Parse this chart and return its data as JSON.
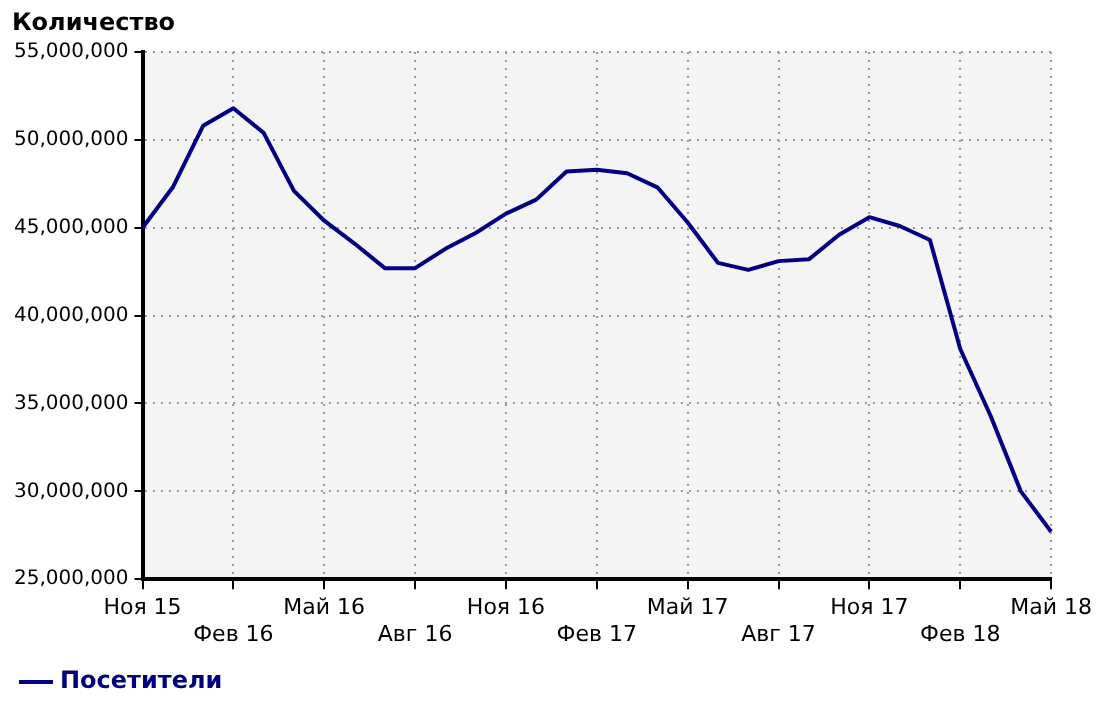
{
  "chart_data": {
    "type": "line",
    "ylabel": "Количество",
    "categories": [
      "Ноя 15",
      null,
      null,
      "Фев 16",
      null,
      null,
      "Май 16",
      null,
      null,
      "Авг 16",
      null,
      null,
      "Ноя 16",
      null,
      null,
      "Фев 17",
      null,
      null,
      "Май 17",
      null,
      null,
      "Авг 17",
      null,
      null,
      "Ноя 17",
      null,
      null,
      "Фев 18",
      null,
      null,
      "Май 18"
    ],
    "series": [
      {
        "name": "Посетители",
        "color": "#000080",
        "values": [
          45000000.0,
          47300000.0,
          50800000.0,
          51800000.0,
          50400000.0,
          47100000.0,
          45400000.0,
          44100000.0,
          42700000.0,
          42700000.0,
          43800000.0,
          44700000.0,
          45800000.0,
          46600000.0,
          48200000.0,
          48300000.0,
          48100000.0,
          47300000.0,
          45300000.0,
          43000000.0,
          42600000.0,
          43100000.0,
          43200000.0,
          44600000.0,
          45600000.0,
          45100000.0,
          44300000.0,
          38100000.0,
          34300000.0,
          30000000.0,
          27700000.0
        ]
      }
    ],
    "ylim": [
      25000000,
      55000000
    ],
    "yticks": [
      {
        "value": 25000000,
        "label": "25,000,000"
      },
      {
        "value": 30000000,
        "label": "30,000,000"
      },
      {
        "value": 35000000,
        "label": "35,000,000"
      },
      {
        "value": 40000000,
        "label": "40,000,000"
      },
      {
        "value": 45000000,
        "label": "45,000,000"
      },
      {
        "value": 50000000,
        "label": "50,000,000"
      },
      {
        "value": 55000000,
        "label": "55,000,000"
      }
    ],
    "grid": true,
    "legend": "bottom left",
    "marker": "none",
    "line_style": "solid"
  }
}
